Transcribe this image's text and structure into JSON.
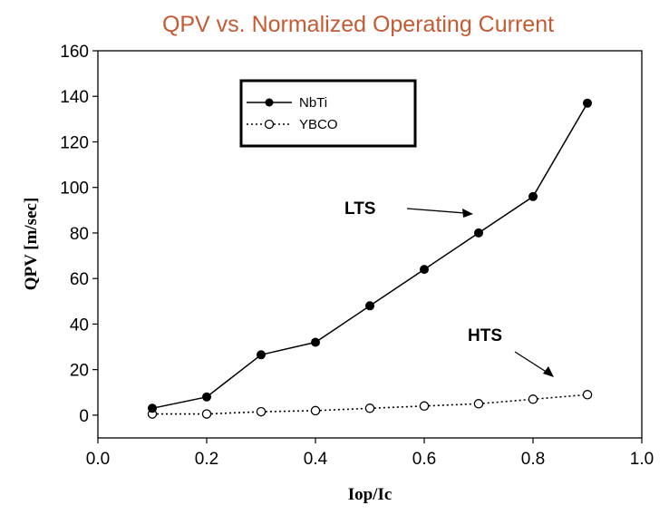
{
  "chart_data": {
    "type": "line",
    "title": "QPV vs. Normalized Operating Current",
    "xlabel": "Iop/Ic",
    "ylabel": "QPV [m/sec]",
    "xlim": [
      0.0,
      1.0
    ],
    "ylim": [
      -10,
      160
    ],
    "x_ticks": [
      "0.0",
      "0.2",
      "0.4",
      "0.6",
      "0.8",
      "1.0"
    ],
    "y_ticks": [
      "0",
      "20",
      "40",
      "60",
      "80",
      "100",
      "120",
      "140",
      "160"
    ],
    "grid": false,
    "legend_position": "top-left",
    "series": [
      {
        "name": "NbTi",
        "style": "solid",
        "marker": "filled-circle",
        "x": [
          0.1,
          0.2,
          0.3,
          0.4,
          0.5,
          0.6,
          0.7,
          0.8,
          0.9
        ],
        "y": [
          3,
          8,
          26.5,
          32,
          48,
          64,
          80,
          96,
          137
        ]
      },
      {
        "name": "YBCO",
        "style": "dotted",
        "marker": "open-circle",
        "x": [
          0.1,
          0.2,
          0.3,
          0.4,
          0.5,
          0.6,
          0.7,
          0.8,
          0.9
        ],
        "y": [
          0.5,
          0.5,
          1.5,
          2,
          3,
          4,
          5,
          7,
          9
        ]
      }
    ],
    "annotations": [
      {
        "text": "LTS",
        "arrow_target": [
          0.7,
          88
        ]
      },
      {
        "text": "HTS",
        "arrow_target": [
          0.87,
          16
        ]
      }
    ]
  },
  "colors": {
    "title": "#C55A33",
    "ink": "#000000",
    "marker_open_fill": "#ffffff"
  }
}
